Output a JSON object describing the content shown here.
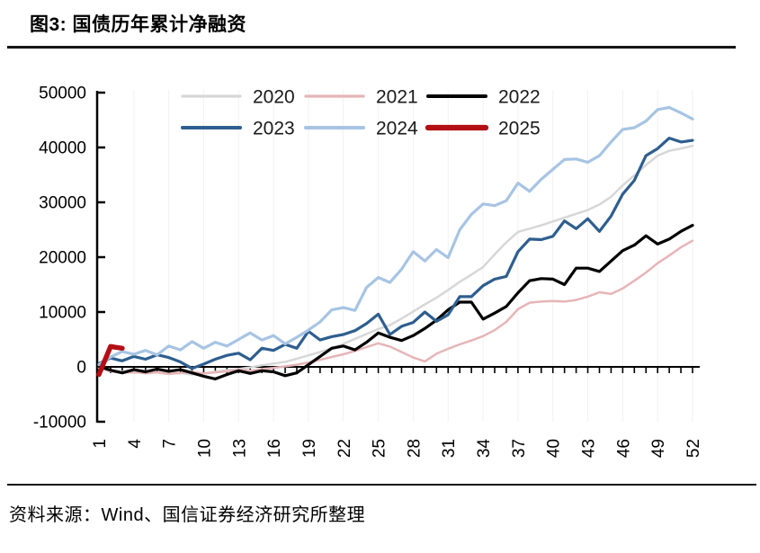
{
  "header": {
    "title": "图3: 国债历年累计净融资"
  },
  "footer": {
    "source": "资料来源：Wind、国信证券经济研究所整理"
  },
  "chart_data": {
    "type": "line",
    "title": "国债历年累计净融资",
    "x_range": [
      1,
      52
    ],
    "x_ticks": [
      1,
      4,
      7,
      10,
      13,
      16,
      19,
      22,
      25,
      28,
      31,
      34,
      37,
      40,
      43,
      46,
      49,
      52
    ],
    "ylim": [
      -10000,
      50000
    ],
    "y_ticks": [
      50000,
      40000,
      30000,
      20000,
      10000,
      0,
      -10000
    ],
    "grid": "faint vertical gridlines at labeled x ticks",
    "legend_position": "top, two rows",
    "legend_rows": [
      [
        "2020",
        "2021",
        "2022"
      ],
      [
        "2023",
        "2024",
        "2025"
      ]
    ],
    "series": [
      {
        "name": "2020",
        "color": "#d7d7d7",
        "width": 2.5,
        "values": [
          -100,
          -600,
          -900,
          -1100,
          -800,
          -1000,
          -1300,
          -1100,
          -1400,
          -1200,
          -900,
          -600,
          -400,
          -100,
          300,
          600,
          900,
          1500,
          2100,
          2700,
          3400,
          4200,
          5100,
          6000,
          6900,
          7600,
          8800,
          10100,
          11400,
          12600,
          14000,
          15500,
          16800,
          18200,
          20500,
          22700,
          24600,
          25200,
          25800,
          26500,
          27200,
          27900,
          28600,
          29600,
          31000,
          33100,
          34900,
          36800,
          38500,
          39400,
          39800,
          40300
        ]
      },
      {
        "name": "2021",
        "color": "#e6b5b7",
        "width": 2.5,
        "values": [
          -200,
          -800,
          -1100,
          -900,
          -1200,
          -1000,
          -1300,
          -1100,
          -900,
          -1200,
          -1000,
          -800,
          -500,
          -700,
          -400,
          -200,
          100,
          400,
          800,
          1300,
          1800,
          2300,
          2900,
          3600,
          4300,
          3700,
          2700,
          1700,
          1000,
          2400,
          3300,
          4100,
          4800,
          5600,
          6700,
          8200,
          10500,
          11700,
          11900,
          12000,
          11900,
          12200,
          12800,
          13600,
          13300,
          14300,
          15700,
          17200,
          18900,
          20300,
          21800,
          23000
        ]
      },
      {
        "name": "2022",
        "color": "#000000",
        "width": 3.2,
        "values": [
          100,
          -600,
          -1100,
          -500,
          -900,
          -400,
          -800,
          -500,
          -1100,
          -1700,
          -2200,
          -1400,
          -700,
          -1200,
          -700,
          -900,
          -1600,
          -1100,
          400,
          1900,
          3400,
          3800,
          3100,
          4500,
          6200,
          5400,
          4800,
          5700,
          7000,
          8500,
          10400,
          11800,
          11800,
          8700,
          9800,
          11000,
          13500,
          15700,
          16100,
          16000,
          15000,
          18000,
          18000,
          17400,
          19300,
          21200,
          22200,
          23900,
          22400,
          23300,
          24700,
          25800
        ]
      },
      {
        "name": "2023",
        "color": "#2e5e8f",
        "width": 3.2,
        "values": [
          600,
          1600,
          1100,
          1900,
          1400,
          2200,
          1700,
          900,
          -300,
          500,
          1400,
          2100,
          2500,
          1300,
          3400,
          3000,
          4100,
          3400,
          6500,
          4900,
          5500,
          5900,
          6600,
          7900,
          9600,
          5900,
          7400,
          8100,
          10000,
          8300,
          9500,
          12800,
          12800,
          14800,
          16000,
          16500,
          21000,
          23300,
          23200,
          23800,
          26600,
          25200,
          27000,
          24700,
          27500,
          31500,
          34000,
          38500,
          39800,
          41700,
          41000,
          41300
        ]
      },
      {
        "name": "2024",
        "color": "#a7c4e3",
        "width": 3.2,
        "values": [
          400,
          1800,
          2800,
          2300,
          3000,
          2200,
          3800,
          3100,
          4600,
          3400,
          4500,
          3800,
          5000,
          6200,
          4900,
          5700,
          4200,
          5400,
          6700,
          8200,
          10400,
          10800,
          10300,
          14500,
          16300,
          15400,
          17800,
          21000,
          19300,
          21400,
          19900,
          25000,
          27800,
          29700,
          29400,
          30300,
          33500,
          32000,
          34200,
          36000,
          37800,
          37900,
          37300,
          38500,
          41000,
          43300,
          43600,
          44800,
          46900,
          47300,
          46300,
          45200
        ]
      },
      {
        "name": "2025",
        "color": "#b40f15",
        "width": 5.5,
        "values": [
          -1400,
          3700,
          3400
        ]
      }
    ]
  }
}
